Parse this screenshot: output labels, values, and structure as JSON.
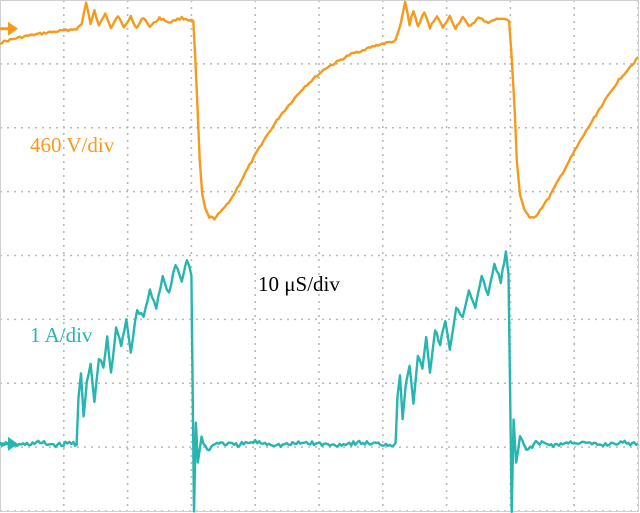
{
  "chart_data": {
    "type": "line",
    "title": "",
    "xlabel": "",
    "ylabel": "",
    "grid": true,
    "grid_divisions": {
      "x": 10,
      "y": 8
    },
    "timebase_label": "10 μS/div",
    "x_unit": "div",
    "y_unit": "div",
    "xlim": [
      0,
      10
    ],
    "ylim": [
      -4,
      4
    ],
    "series": [
      {
        "label": "460 V/div",
        "color": "#f59a1c",
        "points": [
          [
            0.0,
            3.33
          ],
          [
            0.25,
            3.4
          ],
          [
            0.5,
            3.45
          ],
          [
            0.75,
            3.49
          ],
          [
            1.0,
            3.52
          ],
          [
            1.2,
            3.55
          ],
          [
            1.28,
            3.62
          ],
          [
            1.35,
            3.97
          ],
          [
            1.42,
            3.62
          ],
          [
            1.48,
            3.83
          ],
          [
            1.55,
            3.59
          ],
          [
            1.65,
            3.8
          ],
          [
            1.74,
            3.57
          ],
          [
            1.85,
            3.76
          ],
          [
            1.94,
            3.56
          ],
          [
            2.05,
            3.74
          ],
          [
            2.14,
            3.56
          ],
          [
            2.25,
            3.73
          ],
          [
            2.35,
            3.58
          ],
          [
            2.5,
            3.72
          ],
          [
            2.65,
            3.65
          ],
          [
            2.85,
            3.72
          ],
          [
            3.03,
            3.67
          ],
          [
            3.06,
            3.1
          ],
          [
            3.1,
            2.2
          ],
          [
            3.13,
            1.5
          ],
          [
            3.17,
            0.95
          ],
          [
            3.22,
            0.72
          ],
          [
            3.28,
            0.6
          ],
          [
            3.36,
            0.58
          ],
          [
            3.48,
            0.7
          ],
          [
            3.65,
            0.93
          ],
          [
            3.85,
            1.3
          ],
          [
            4.1,
            1.75
          ],
          [
            4.4,
            2.2
          ],
          [
            4.75,
            2.62
          ],
          [
            5.1,
            2.93
          ],
          [
            5.5,
            3.15
          ],
          [
            5.9,
            3.29
          ],
          [
            6.2,
            3.36
          ],
          [
            6.28,
            3.62
          ],
          [
            6.35,
            3.97
          ],
          [
            6.42,
            3.62
          ],
          [
            6.48,
            3.83
          ],
          [
            6.55,
            3.59
          ],
          [
            6.65,
            3.8
          ],
          [
            6.74,
            3.57
          ],
          [
            6.85,
            3.76
          ],
          [
            6.94,
            3.56
          ],
          [
            7.05,
            3.74
          ],
          [
            7.14,
            3.56
          ],
          [
            7.25,
            3.73
          ],
          [
            7.35,
            3.58
          ],
          [
            7.5,
            3.72
          ],
          [
            7.65,
            3.65
          ],
          [
            7.85,
            3.72
          ],
          [
            7.98,
            3.67
          ],
          [
            8.02,
            3.1
          ],
          [
            8.07,
            2.2
          ],
          [
            8.1,
            1.5
          ],
          [
            8.15,
            0.95
          ],
          [
            8.22,
            0.72
          ],
          [
            8.3,
            0.58
          ],
          [
            8.4,
            0.62
          ],
          [
            8.6,
            0.9
          ],
          [
            8.85,
            1.35
          ],
          [
            9.1,
            1.8
          ],
          [
            9.4,
            2.3
          ],
          [
            9.7,
            2.75
          ],
          [
            10.0,
            3.1
          ]
        ]
      },
      {
        "label": "1 A/div",
        "color": "#27b5b0",
        "points": [
          [
            0.0,
            -2.95
          ],
          [
            0.3,
            -2.97
          ],
          [
            0.6,
            -2.93
          ],
          [
            0.9,
            -2.97
          ],
          [
            1.15,
            -2.93
          ],
          [
            1.2,
            -2.96
          ],
          [
            1.23,
            -2.2
          ],
          [
            1.27,
            -1.85
          ],
          [
            1.31,
            -2.55
          ],
          [
            1.36,
            -2.0
          ],
          [
            1.42,
            -1.7
          ],
          [
            1.48,
            -2.3
          ],
          [
            1.55,
            -1.6
          ],
          [
            1.62,
            -1.75
          ],
          [
            1.68,
            -1.3
          ],
          [
            1.74,
            -1.85
          ],
          [
            1.82,
            -1.15
          ],
          [
            1.9,
            -1.4
          ],
          [
            1.98,
            -1.0
          ],
          [
            2.05,
            -1.5
          ],
          [
            2.15,
            -0.85
          ],
          [
            2.25,
            -0.95
          ],
          [
            2.35,
            -0.55
          ],
          [
            2.45,
            -0.8
          ],
          [
            2.55,
            -0.35
          ],
          [
            2.65,
            -0.6
          ],
          [
            2.75,
            -0.15
          ],
          [
            2.85,
            -0.4
          ],
          [
            2.93,
            -0.05
          ],
          [
            3.0,
            -0.3
          ],
          [
            3.04,
            -4.0
          ],
          [
            3.07,
            -2.6
          ],
          [
            3.1,
            -3.25
          ],
          [
            3.16,
            -2.85
          ],
          [
            3.25,
            -3.05
          ],
          [
            3.4,
            -2.93
          ],
          [
            3.7,
            -2.97
          ],
          [
            4.0,
            -2.92
          ],
          [
            4.4,
            -2.97
          ],
          [
            4.8,
            -2.93
          ],
          [
            5.2,
            -2.97
          ],
          [
            5.6,
            -2.93
          ],
          [
            5.9,
            -2.95
          ],
          [
            6.2,
            -2.96
          ],
          [
            6.23,
            -2.2
          ],
          [
            6.27,
            -1.85
          ],
          [
            6.31,
            -2.55
          ],
          [
            6.36,
            -2.0
          ],
          [
            6.42,
            -1.7
          ],
          [
            6.48,
            -2.3
          ],
          [
            6.55,
            -1.6
          ],
          [
            6.62,
            -1.75
          ],
          [
            6.68,
            -1.3
          ],
          [
            6.74,
            -1.85
          ],
          [
            6.82,
            -1.15
          ],
          [
            6.9,
            -1.4
          ],
          [
            6.98,
            -1.0
          ],
          [
            7.05,
            -1.5
          ],
          [
            7.15,
            -0.85
          ],
          [
            7.25,
            -0.95
          ],
          [
            7.35,
            -0.55
          ],
          [
            7.45,
            -0.8
          ],
          [
            7.55,
            -0.35
          ],
          [
            7.65,
            -0.6
          ],
          [
            7.75,
            -0.15
          ],
          [
            7.85,
            -0.4
          ],
          [
            7.93,
            0.05
          ],
          [
            7.97,
            -0.3
          ],
          [
            8.02,
            -4.0
          ],
          [
            8.05,
            -2.6
          ],
          [
            8.09,
            -3.25
          ],
          [
            8.15,
            -2.85
          ],
          [
            8.25,
            -3.05
          ],
          [
            8.4,
            -2.93
          ],
          [
            8.7,
            -2.97
          ],
          [
            9.0,
            -2.92
          ],
          [
            9.4,
            -2.97
          ],
          [
            9.7,
            -2.93
          ],
          [
            10.0,
            -2.95
          ]
        ]
      }
    ],
    "markers": [
      {
        "name": "ch1-ground-marker",
        "color": "#f59a1c",
        "y": 3.55
      },
      {
        "name": "ch2-ground-marker",
        "color": "#27b5b0",
        "y": -2.95
      }
    ],
    "annotations": [
      {
        "text": "460 V/div",
        "color": "#f59a1c"
      },
      {
        "text": "10 μS/div",
        "color": "#000000"
      },
      {
        "text": "1 A/div",
        "color": "#27b5b0"
      }
    ]
  }
}
